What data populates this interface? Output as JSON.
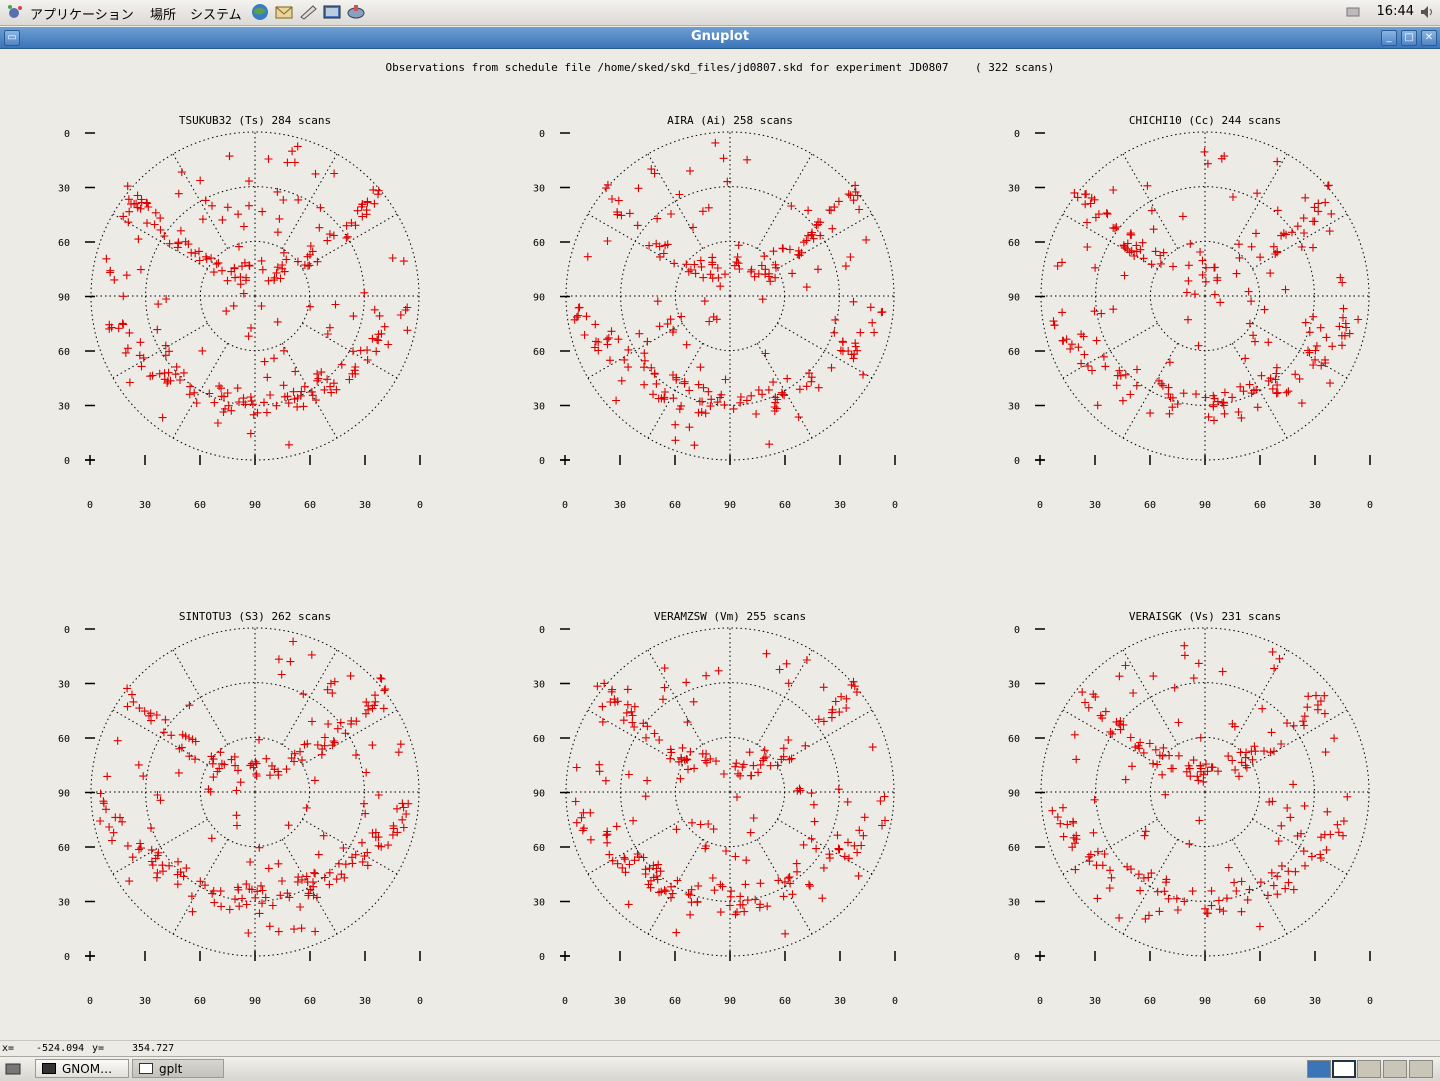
{
  "top_panel": {
    "menus": [
      "アプリケーション",
      "場所",
      "システム"
    ],
    "launchers": [
      "browser-icon",
      "mail-icon",
      "notes-icon",
      "screenshot-icon",
      "network-icon"
    ],
    "clock": "16:44"
  },
  "window": {
    "title": "Gnuplot"
  },
  "plot": {
    "title": "Observations from schedule file /home/sked/skd_files/jd0807.skd for experiment JD0807    ( 322 scans)",
    "marker_color": "#e00000",
    "y_tick_labels": [
      "0",
      "30",
      "60",
      "90",
      "60",
      "30",
      "0"
    ],
    "x_tick_labels": [
      "0",
      "30",
      "60",
      "90",
      "60",
      "30",
      "0"
    ]
  },
  "chart_data": [
    {
      "type": "scatter",
      "title": "TSUKUB32 (Ts)  284 scans",
      "projection": "polar-sky",
      "grid": true
    },
    {
      "type": "scatter",
      "title": "AIRA (Ai)  258 scans",
      "projection": "polar-sky",
      "grid": true
    },
    {
      "type": "scatter",
      "title": "CHICHI10 (Cc)  244 scans",
      "projection": "polar-sky",
      "grid": true
    },
    {
      "type": "scatter",
      "title": "SINTOTU3 (S3)  262 scans",
      "projection": "polar-sky",
      "grid": true
    },
    {
      "type": "scatter",
      "title": "VERAMZSW (Vm)  255 scans",
      "projection": "polar-sky",
      "grid": true
    },
    {
      "type": "scatter",
      "title": "VERAISGK (Vs)  231 scans",
      "projection": "polar-sky",
      "grid": true
    }
  ],
  "status": {
    "x_label": "x=",
    "x_value": "-524.094",
    "y_label": "y=",
    "y_value": "354.727"
  },
  "taskbar": {
    "tasks": [
      "GNOM…",
      "gplt"
    ]
  }
}
